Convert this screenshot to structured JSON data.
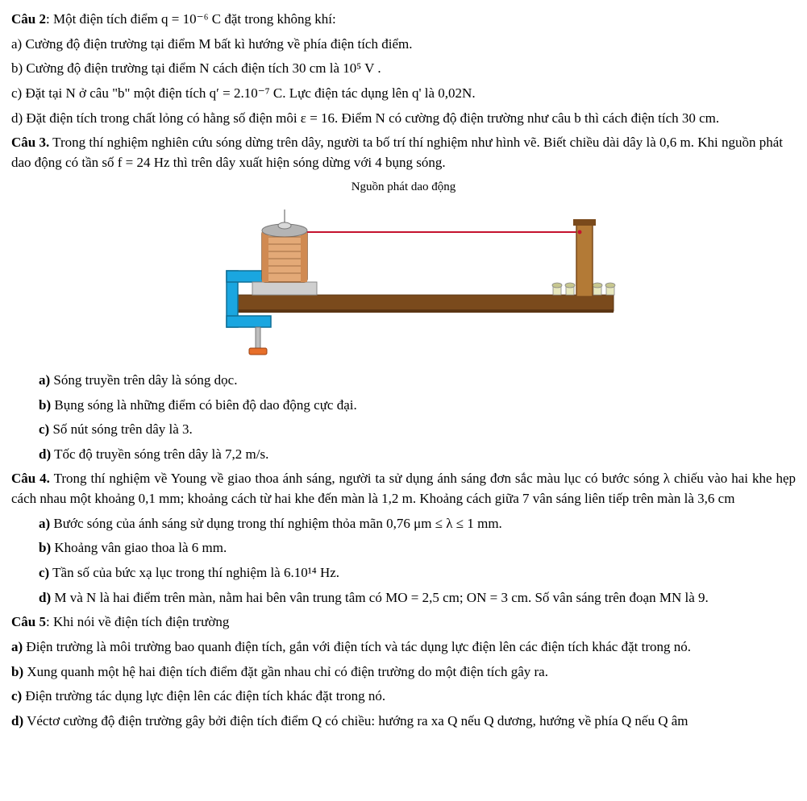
{
  "q2": {
    "title_strong": "Câu 2",
    "title_rest": ": Một điện tích điểm  q = 10⁻⁶ C  đặt trong không khí:",
    "a": "a) Cường độ điện trường tại điểm M bất kì hướng về phía điện tích điểm.",
    "b": "b) Cường độ điện trường tại điểm N cách điện tích 30 cm là  10⁵ V .",
    "c": "c) Đặt tại N ở câu \"b\" một điện tích  q′ = 2.10⁻⁷  C. Lực điện tác dụng lên  q'  là 0,02N.",
    "d": "d) Đặt điện tích trong chất lỏng có hằng số điện môi  ε = 16. Điểm  N  có cường độ điện trường như câu b thì cách điện tích 30 cm."
  },
  "q3": {
    "title_strong": "Câu 3.",
    "title_rest": " Trong thí nghiệm nghiên cứu sóng dừng trên dây, người ta bố trí thí nghiệm như hình vẽ. Biết chiều dài dây là 0,6 m. Khi nguồn phát dao động có tần số  f = 24 Hz  thì trên dây xuất hiện sóng dừng với 4 bụng sóng.",
    "fig_label": "Nguồn phát dao động",
    "a": " Sóng truyền trên dây là sóng dọc.",
    "b": " Bụng sóng là những điểm có biên độ dao động cực đại.",
    "c": " Số nút sóng trên dây là 3.",
    "d": " Tốc độ truyền sóng trên dây là 7,2 m/s."
  },
  "q4": {
    "title_strong": "Câu 4.",
    "title_rest": " Trong thí nghiệm về Young về giao thoa ánh sáng, người ta sử dụng ánh sáng đơn sắc màu lục có bước sóng  λ  chiếu vào hai khe hẹp cách nhau một khoảng 0,1 mm; khoảng cách từ hai khe đến màn là 1,2 m. Khoảng cách giữa 7 vân sáng liên tiếp trên màn là 3,6 cm",
    "a": " Bước sóng của ánh sáng sử dụng trong thí nghiệm thỏa mãn  0,76 μm ≤ λ ≤ 1 mm.",
    "b": " Khoảng vân giao thoa là 6 mm.",
    "c": " Tần số của bức xạ lục trong thí nghiệm là  6.10¹⁴ Hz.",
    "d": " M và N là hai điểm trên màn, nằm hai bên vân trung tâm có  MO = 2,5 cm; ON = 3 cm.  Số vân sáng trên đoạn MN là 9."
  },
  "q5": {
    "title_strong": "Câu 5",
    "title_rest": ": Khi nói về điện tích điện trường",
    "a": " Điện trường là môi trường bao quanh điện tích, gắn với điện tích và tác dụng lực điện lên các điện tích khác đặt trong nó.",
    "b": " Xung quanh một hệ hai điện tích điểm đặt gần nhau chỉ có điện trường do một điện tích gây ra.",
    "c": " Điện trường tác dụng lực điện lên các điện tích khác đặt trong nó.",
    "d": " Véctơ cường độ điện trường gây bởi điện tích điểm Q có chiều: hướng ra xa Q nếu Q dương, hướng về phía Q nếu Q âm"
  },
  "fig": {
    "bench_color": "#7a4a1c",
    "bench_shadow": "#5b3513",
    "clamp_color": "#1aa6e0",
    "clamp_dark": "#0f6e96",
    "spool_outer": "#d08a52",
    "spool_inner": "#e3a977",
    "spool_edge": "#8a5a32",
    "spool_top": "#b4b4b4",
    "spool_cap": "#d9d9d9",
    "base_color": "#cfcfcf",
    "screw_color": "#e76f2a",
    "string_color": "#c5122e",
    "pillar_color": "#b37a36",
    "pillar_edge": "#7a4a1c",
    "peg_body": "#e8e8bf",
    "peg_top": "#c7c78f"
  }
}
